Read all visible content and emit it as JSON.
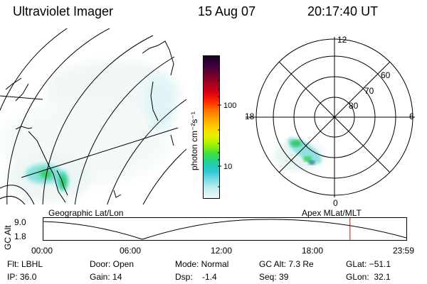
{
  "header": {
    "instrument": "Ultraviolet Imager",
    "date": "15 Aug 07",
    "time": "20:17:40 UT"
  },
  "colorbar": {
    "unit_label": "photon cm⁻²s⁻¹",
    "ticks": [
      "100",
      "10"
    ],
    "colors": [
      "#1a0020",
      "#3a0040",
      "#6a0030",
      "#a00020",
      "#d00018",
      "#ff2000",
      "#ff6a00",
      "#ffa000",
      "#ffd000",
      "#e8f000",
      "#a0f000",
      "#40e040",
      "#20d0a0",
      "#30c8d8",
      "#80e0e8",
      "#c8f0f0",
      "#f0fafa"
    ]
  },
  "geo_map": {
    "label": "Geographic Lat/Lon"
  },
  "polar_plot": {
    "label": "Apex MLat/MLT",
    "mlt_labels": {
      "top": "12",
      "left": "18",
      "right": "6",
      "bottom": "0"
    },
    "lat_labels": [
      "60",
      "70",
      "80"
    ]
  },
  "altitude_plot": {
    "axis_title": "GC Alt",
    "y_ticks": [
      "9.0",
      "1.8"
    ],
    "x_ticks": [
      "00:00",
      "06:00",
      "12:00",
      "18:00",
      "23:59"
    ],
    "current_time_marker_fraction": 0.845
  },
  "status": {
    "flt": "Flt: LBHL",
    "ip": "IP: 36.0",
    "door": "Door: Open",
    "gain": "Gain: 14",
    "mode": "Mode: Normal",
    "dsp": "Dsp:    -1.4",
    "gc_alt": "GC Alt: 7.3 Re",
    "seq": "Seq: 39",
    "glat": "GLat: −51.1",
    "glon": "GLon:  32.1"
  }
}
